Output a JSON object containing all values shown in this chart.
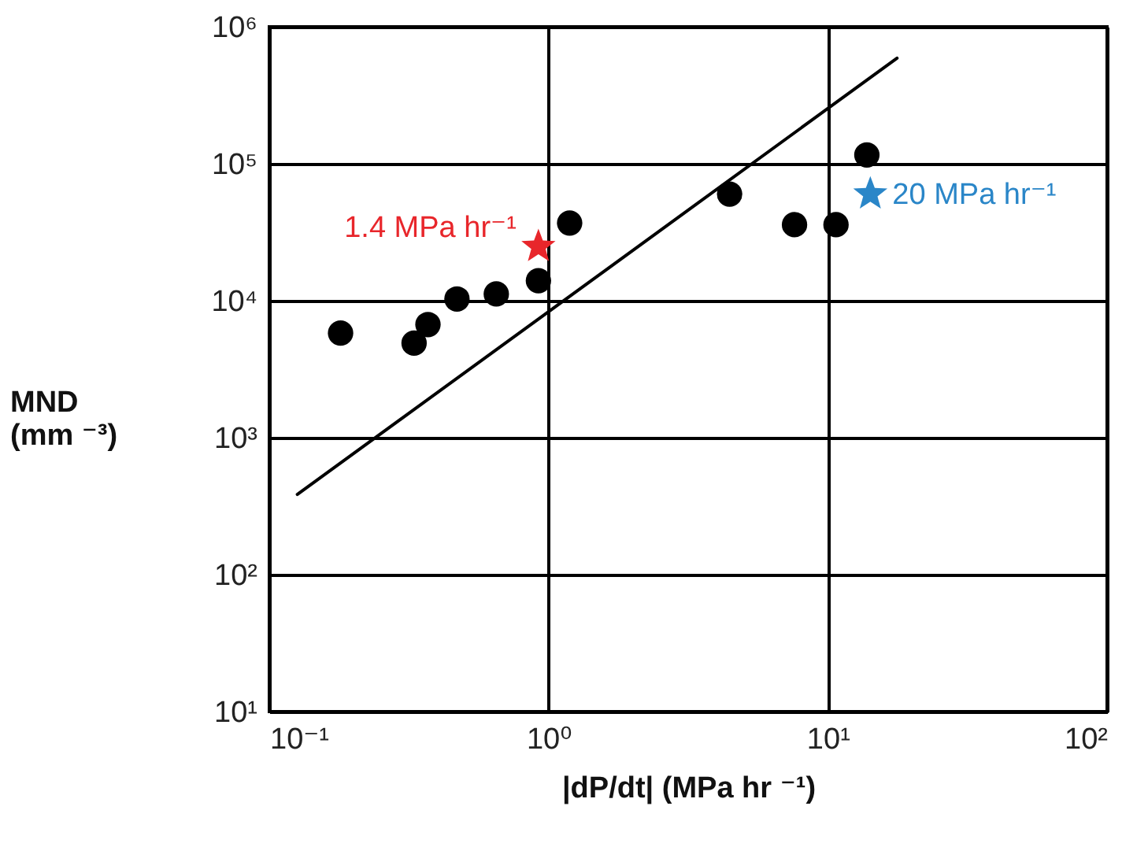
{
  "chart_data": {
    "type": "scatter",
    "xlabel": "|dP/dt| (MPa hr ⁻¹)",
    "ylabel": "MND\n(mm ⁻³)",
    "log": "xy",
    "grid": true,
    "xlim": [
      0.1,
      100
    ],
    "ylim": [
      10,
      1000000
    ],
    "xticks": [
      {
        "value": 0.1,
        "label": "10⁻¹"
      },
      {
        "value": 1,
        "label": "10⁰"
      },
      {
        "value": 10,
        "label": "10¹"
      },
      {
        "value": 100,
        "label": "10²"
      }
    ],
    "yticks": [
      {
        "value": 10,
        "label": "10¹"
      },
      {
        "value": 100,
        "label": "10²"
      },
      {
        "value": 1000,
        "label": "10³"
      },
      {
        "value": 10000,
        "label": "10⁴"
      },
      {
        "value": 100000,
        "label": "10⁵"
      },
      {
        "value": 1000000,
        "label": "10⁶"
      }
    ],
    "series": [
      {
        "type": "line",
        "color": "#000000",
        "x": [
          0.126,
          17.7
        ],
        "values": [
          385,
          590000
        ]
      },
      {
        "color": "#000000",
        "marker": "circle",
        "x": [
          0.18,
          0.33,
          0.37,
          0.47,
          0.65,
          0.92,
          1.19,
          4.45,
          7.6,
          10.7,
          13.8
        ],
        "values": [
          5800,
          4900,
          6700,
          10300,
          11200,
          14000,
          36900,
          60000,
          35900,
          35900,
          116000
        ]
      },
      {
        "color": "#e8262b",
        "marker": "star",
        "x": [
          0.92
        ],
        "values": [
          24800
        ]
      },
      {
        "color": "#2a86c8",
        "marker": "star",
        "x": [
          14.2
        ],
        "values": [
          60000
        ]
      }
    ],
    "annotations": [
      {
        "text": "1.4 MPa hr⁻¹",
        "x": 0.92,
        "y": 24800
      },
      {
        "text": "20 MPa hr⁻¹",
        "x": 14.2,
        "y": 60000
      }
    ]
  }
}
